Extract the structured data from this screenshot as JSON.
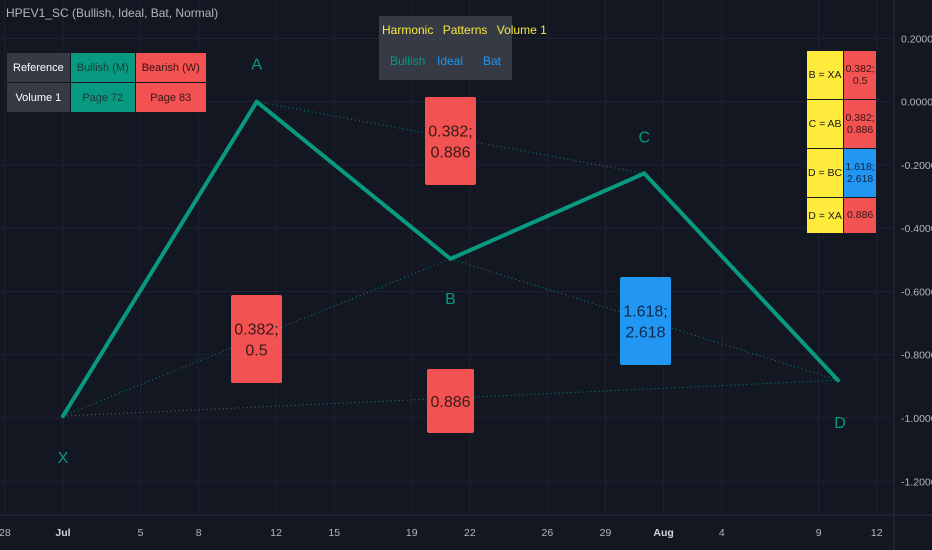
{
  "indicator": {
    "title": "HPEV1_SC (Bullish, Ideal, Bat, Normal)"
  },
  "reference_table": {
    "rows": [
      {
        "label": "Reference",
        "bullish": "Bullish (M)",
        "bearish": "Bearish (W)"
      },
      {
        "label": "Volume 1",
        "bullish": "Page 72",
        "bearish": "Page 83"
      }
    ]
  },
  "info_panel": {
    "title": [
      "Harmonic",
      "Patterns",
      "Volume 1"
    ],
    "direction": "Bullish",
    "mode": "Ideal",
    "pattern": "Bat"
  },
  "ratio_table": [
    {
      "label": "B = XA",
      "value_lines": [
        "0.382;",
        "0.5"
      ],
      "color": "#f25252"
    },
    {
      "label": "C = AB",
      "value_lines": [
        "0.382;",
        "0.886"
      ],
      "color": "#f25252"
    },
    {
      "label": "D = BC",
      "value_lines": [
        "1.618;",
        "2.618"
      ],
      "color": "#2196f3"
    },
    {
      "label": "D = XA",
      "value_lines": [
        "0.886"
      ],
      "color": "#f25252"
    }
  ],
  "colors": {
    "background": "#131722",
    "pattern_line": "#089981",
    "ratio_red": "#f25252",
    "ratio_blue": "#2196f3",
    "highlight_yellow": "#ffeb3b",
    "axis_text": "#b2b5be"
  },
  "chart_data": {
    "type": "line",
    "title": "HPEV1_SC (Bullish, Ideal, Bat, Normal)",
    "xlabel": "",
    "ylabel": "",
    "x_tick_labels": [
      "28",
      "Jul",
      "5",
      "8",
      "12",
      "15",
      "19",
      "22",
      "26",
      "29",
      "Aug",
      "4",
      "9",
      "12"
    ],
    "x_tick_positions": [
      -3,
      0,
      4,
      7,
      11,
      14,
      18,
      21,
      25,
      28,
      31,
      34,
      39,
      42
    ],
    "y_tick_values": [
      0.2,
      0.0,
      -0.2,
      -0.4,
      -0.6,
      -0.8,
      -1.0,
      -1.2
    ],
    "y_tick_labels": [
      "0.2000",
      "0.0000",
      "-0.2000",
      "-0.4000",
      "-0.6000",
      "-0.8000",
      "-1.0000",
      "-1.2000"
    ],
    "ylim": [
      -1.35,
      0.35
    ],
    "xlim": [
      -3.2,
      43.5
    ],
    "grid": true,
    "series": [
      {
        "points": [
          {
            "label": "X",
            "x": 0,
            "y": -0.9939
          },
          {
            "label": "A",
            "x": 10,
            "y": 0.0
          },
          {
            "label": "B",
            "x": 20,
            "y": -0.4969
          },
          {
            "label": "C",
            "x": 30,
            "y": -0.2266
          },
          {
            "label": "D",
            "x": 40,
            "y": -0.8806
          }
        ]
      }
    ],
    "ratio_labels": [
      {
        "text_lines": [
          "0.382;",
          "0.5"
        ],
        "leg": "XB",
        "color": "#f25252"
      },
      {
        "text_lines": [
          "0.382;",
          "0.886"
        ],
        "leg": "AC",
        "color": "#f25252"
      },
      {
        "text_lines": [
          "1.618;",
          "2.618"
        ],
        "leg": "BD",
        "color": "#2196f3"
      },
      {
        "text_lines": [
          "0.886"
        ],
        "leg": "XD",
        "color": "#f25252"
      }
    ]
  }
}
